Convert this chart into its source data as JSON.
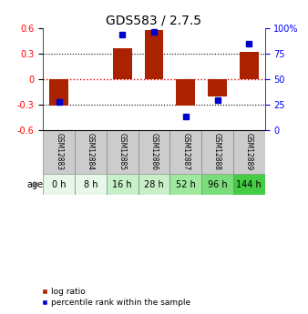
{
  "title": "GDS583 / 2.7.5",
  "samples": [
    "GSM12883",
    "GSM12884",
    "GSM12885",
    "GSM12886",
    "GSM12887",
    "GSM12888",
    "GSM12889"
  ],
  "ages": [
    "0 h",
    "8 h",
    "16 h",
    "28 h",
    "52 h",
    "96 h",
    "144 h"
  ],
  "log_ratio": [
    -0.31,
    0.0,
    0.36,
    0.575,
    -0.315,
    -0.21,
    0.325
  ],
  "percentile_rank_display": [
    -0.27,
    null,
    0.52,
    0.555,
    -0.44,
    -0.245,
    0.42
  ],
  "ylim": [
    -0.6,
    0.6
  ],
  "yticks_left": [
    -0.6,
    -0.3,
    0,
    0.3,
    0.6
  ],
  "yticks_right": [
    0,
    25,
    50,
    75,
    100
  ],
  "bar_color": "#aa2200",
  "dot_color": "#0000cc",
  "grid_color": "#000000",
  "zero_line_color": "#cc0000",
  "age_colors": [
    "#e8f8e8",
    "#e8f8e8",
    "#c8f0c8",
    "#c8f0c8",
    "#a0e8a0",
    "#7add7a",
    "#44cc44"
  ],
  "sample_bg_color": "#cccccc",
  "bar_width": 0.6,
  "legend_labels": [
    "log ratio",
    "percentile rank within the sample"
  ]
}
